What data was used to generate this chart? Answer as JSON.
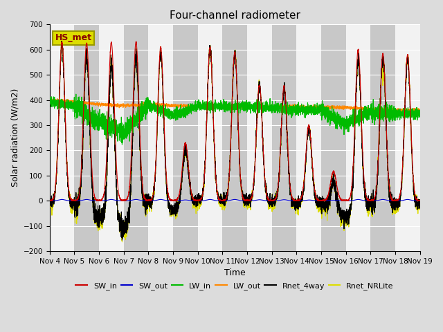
{
  "title": "Four-channel radiometer",
  "xlabel": "Time",
  "ylabel": "Solar radiation (W/m2)",
  "annotation": "HS_met",
  "ylim": [
    -200,
    700
  ],
  "yticks": [
    -200,
    -100,
    0,
    100,
    200,
    300,
    400,
    500,
    600,
    700
  ],
  "n_days": 15,
  "xtick_labels": [
    "Nov 4",
    "Nov 5",
    "Nov 6",
    "Nov 7",
    "Nov 8",
    "Nov 9",
    "Nov 10",
    "Nov 11",
    "Nov 12",
    "Nov 13",
    "Nov 14",
    "Nov 15",
    "Nov 16",
    "Nov 17",
    "Nov 18",
    "Nov 19"
  ],
  "colors": {
    "SW_in": "#cc0000",
    "SW_out": "#0000cc",
    "LW_in": "#00bb00",
    "LW_out": "#ff8800",
    "Rnet_4way": "#000000",
    "Rnet_NRLite": "#dddd00"
  },
  "bg_color": "#dcdcdc",
  "plot_bg_color": "#f2f2f2",
  "band_color": "#c8c8c8",
  "annotation_box_facecolor": "#dddd00",
  "annotation_box_edgecolor": "#999900",
  "annotation_text_color": "#880000",
  "grid_color": "#ffffff",
  "sw_peaks": [
    630,
    625,
    630,
    630,
    610,
    230,
    610,
    590,
    460,
    455,
    300,
    115,
    600,
    585,
    580
  ],
  "sw_out_peaks": [
    5,
    5,
    5,
    5,
    5,
    3,
    5,
    5,
    4,
    4,
    3,
    2,
    5,
    5,
    5
  ],
  "lw_in_base": [
    395,
    375,
    315,
    270,
    380,
    340,
    375,
    375,
    375,
    370,
    360,
    360,
    305,
    355,
    345
  ],
  "lw_out_base": [
    400,
    393,
    383,
    378,
    382,
    378,
    374,
    374,
    374,
    373,
    373,
    372,
    370,
    363,
    360
  ],
  "title_fontsize": 11,
  "axis_label_fontsize": 9,
  "tick_fontsize": 7.5,
  "legend_fontsize": 8
}
